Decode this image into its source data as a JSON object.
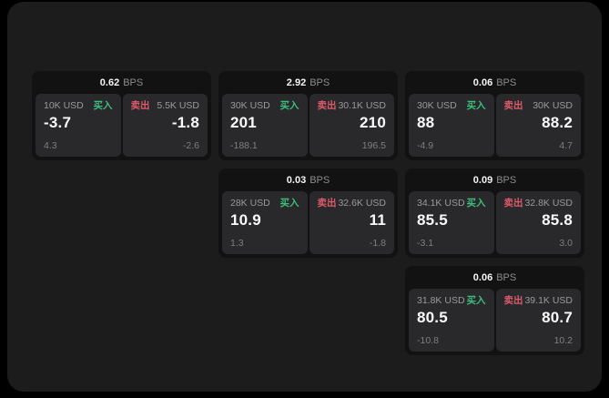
{
  "labels": {
    "bps": "BPS",
    "buy": "买入",
    "sell": "卖出"
  },
  "colors": {
    "background": "#000000",
    "panel": "#1c1c1d",
    "card": "#121213",
    "subpanel": "#29292b",
    "buy_accent": "#3dbd7d",
    "sell_accent": "#dd5a6b",
    "price_text": "#fafafa",
    "muted_text": "#9a9a9c"
  },
  "cards": [
    {
      "bps": "0.62",
      "buy": {
        "amount": "10K USD",
        "price": "-3.7",
        "delta": "4.3"
      },
      "sell": {
        "amount": "5.5K USD",
        "price": "-1.8",
        "delta": "-2.6"
      }
    },
    {
      "bps": "2.92",
      "buy": {
        "amount": "30K USD",
        "price": "201",
        "delta": "-188.1"
      },
      "sell": {
        "amount": "30.1K USD",
        "price": "210",
        "delta": "196.5"
      }
    },
    {
      "bps": "0.06",
      "buy": {
        "amount": "30K USD",
        "price": "88",
        "delta": "-4.9"
      },
      "sell": {
        "amount": "30K USD",
        "price": "88.2",
        "delta": "4.7"
      }
    },
    {
      "bps": "0.03",
      "buy": {
        "amount": "28K USD",
        "price": "10.9",
        "delta": "1.3"
      },
      "sell": {
        "amount": "32.6K USD",
        "price": "11",
        "delta": "-1.8"
      }
    },
    {
      "bps": "0.09",
      "buy": {
        "amount": "34.1K USD",
        "price": "85.5",
        "delta": "-3.1"
      },
      "sell": {
        "amount": "32.8K USD",
        "price": "85.8",
        "delta": "3.0"
      }
    },
    {
      "bps": "0.06",
      "buy": {
        "amount": "31.8K USD",
        "price": "80.5",
        "delta": "-10.8"
      },
      "sell": {
        "amount": "39.1K USD",
        "price": "80.7",
        "delta": "10.2"
      }
    }
  ]
}
